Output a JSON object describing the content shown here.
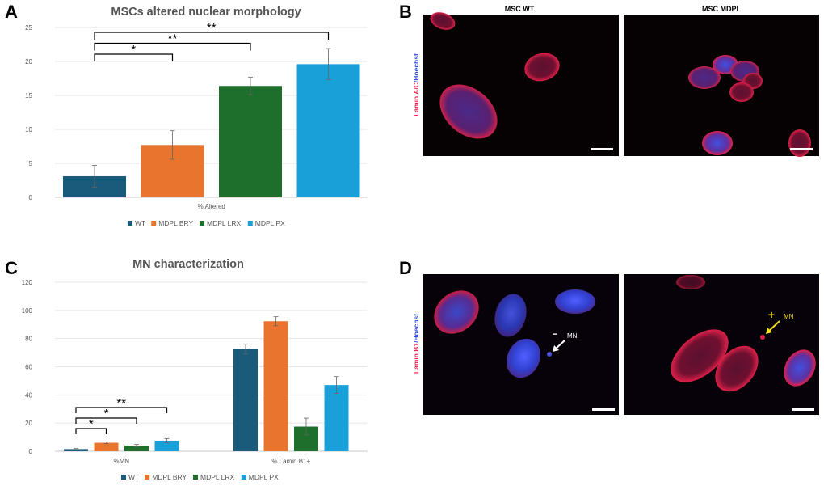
{
  "panels": {
    "A": "A",
    "B": "B",
    "C": "C",
    "D": "D"
  },
  "colors": {
    "wt": "#1a5a7a",
    "bry": "#e8742e",
    "lrx": "#1e6e2c",
    "px": "#1aa0d8",
    "lamin": "#e0204a",
    "hoechst": "#3050d0",
    "marker_yellow": "#f0e020"
  },
  "chart_data": [
    {
      "type": "bar",
      "title": "MSCs altered nuclear morphology",
      "xlabel": "% Altered",
      "ylabel": "",
      "ylim": [
        0,
        25
      ],
      "yticks": [
        "0",
        "5",
        "10",
        "15",
        "20",
        "25"
      ],
      "categories": [
        "% Altered"
      ],
      "series": [
        {
          "name": "WT",
          "values": [
            3.1
          ],
          "errors": [
            1.6
          ]
        },
        {
          "name": "MDPL BRY",
          "values": [
            7.7
          ],
          "errors": [
            2.1
          ]
        },
        {
          "name": "MDPL LRX",
          "values": [
            16.4
          ],
          "errors": [
            1.3
          ]
        },
        {
          "name": "MDPL PX",
          "values": [
            19.6
          ],
          "errors": [
            2.3
          ]
        }
      ],
      "significance": [
        {
          "from": "WT",
          "to": "MDPL BRY",
          "label": "*"
        },
        {
          "from": "WT",
          "to": "MDPL LRX",
          "label": "**"
        },
        {
          "from": "WT",
          "to": "MDPL PX",
          "label": "**"
        }
      ],
      "legend": [
        "WT",
        "MDPL BRY",
        "MDPL LRX",
        "MDPL PX"
      ],
      "legend_position": "bottom"
    },
    {
      "type": "bar",
      "title": "MN characterization",
      "xlabel": "",
      "ylabel": "",
      "ylim": [
        0,
        120
      ],
      "yticks": [
        "0",
        "20",
        "40",
        "60",
        "80",
        "100",
        "120"
      ],
      "categories": [
        "%MN",
        "% Lamin B1+"
      ],
      "series": [
        {
          "name": "WT",
          "values": [
            1.5,
            72.5
          ],
          "errors": [
            0.4,
            3.5
          ]
        },
        {
          "name": "MDPL BRY",
          "values": [
            6.0,
            92.3
          ],
          "errors": [
            0.6,
            3.2
          ]
        },
        {
          "name": "MDPL LRX",
          "values": [
            4.0,
            17.5
          ],
          "errors": [
            0.8,
            6.0
          ]
        },
        {
          "name": "MDPL PX",
          "values": [
            7.5,
            47.0
          ],
          "errors": [
            1.5,
            6.0
          ]
        }
      ],
      "significance": [
        {
          "from": "WT",
          "to": "MDPL BRY",
          "label": "*"
        },
        {
          "from": "WT",
          "to": "MDPL LRX",
          "label": "*"
        },
        {
          "from": "WT",
          "to": "MDPL PX",
          "label": "**"
        }
      ],
      "legend": [
        "WT",
        "MDPL BRY",
        "MDPL LRX",
        "MDPL PX"
      ],
      "legend_position": "bottom"
    }
  ],
  "micrographs": {
    "b_left_title": "MSC WT",
    "b_right_title": "MSC MDPL",
    "b_stain_lamin": "Lamin A/C",
    "b_stain_sep": "/",
    "b_stain_hoechst": "Hoechst",
    "d_stain_lamin": "Lamin B1",
    "d_stain_sep": "/",
    "d_stain_hoechst": "Hoechst",
    "d_left_marker": "−",
    "d_left_label": "MN",
    "d_right_marker": "+",
    "d_right_label": "MN"
  }
}
